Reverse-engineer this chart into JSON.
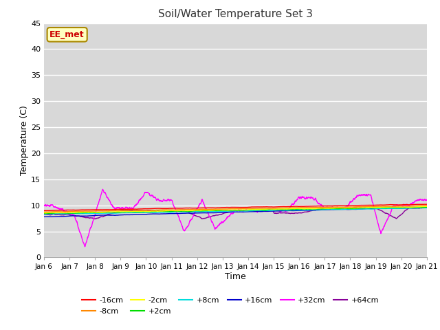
{
  "title": "Soil/Water Temperature Set 3",
  "xlabel": "Time",
  "ylabel": "Temperature (C)",
  "ylim": [
    0,
    45
  ],
  "yticks": [
    0,
    5,
    10,
    15,
    20,
    25,
    30,
    35,
    40,
    45
  ],
  "x_labels": [
    "Jan 6",
    "Jan 7",
    "Jan 8",
    "Jan 9",
    "Jan 10",
    "Jan 11",
    "Jan 12",
    "Jan 13",
    "Jan 14",
    "Jan 15",
    "Jan 16",
    "Jan 17",
    "Jan 18",
    "Jan 19",
    "Jan 20",
    "Jan 21"
  ],
  "series_colors": {
    "-16cm": "#ff0000",
    "-8cm": "#ff8800",
    "-2cm": "#ffff00",
    "+2cm": "#00dd00",
    "+8cm": "#00dddd",
    "+16cm": "#0000cc",
    "+32cm": "#ff00ff",
    "+64cm": "#880099"
  },
  "watermark": "EE_met",
  "fig_bg_color": "#ffffff",
  "plot_bg_color": "#d8d8d8"
}
